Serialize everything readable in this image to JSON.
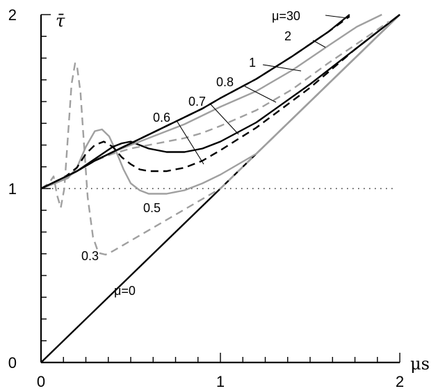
{
  "chart_data": {
    "type": "line",
    "xlabel": "μs",
    "ylabel": "τ̄",
    "xlim": [
      0,
      2
    ],
    "ylim": [
      0,
      2
    ],
    "x_ticks": [
      "0",
      "1",
      "2"
    ],
    "y_ticks": [
      "0",
      "1",
      "2"
    ],
    "reference_line": {
      "y": 1,
      "style": "dotted"
    },
    "series": [
      {
        "name": "μ=0",
        "color": "#000000",
        "dash": "solid",
        "x": [
          0,
          0,
          2
        ],
        "y": [
          0,
          0,
          2
        ]
      },
      {
        "name": "0.3",
        "color": "#a0a0a0",
        "dash": "dashed",
        "x": [
          0,
          0.03,
          0.05,
          0.07,
          0.09,
          0.11,
          0.13,
          0.15,
          0.17,
          0.19,
          0.2,
          0.22,
          0.24,
          0.26,
          0.29,
          0.32,
          0.36,
          0.4,
          0.5,
          0.7,
          1.0,
          1.5,
          1.9
        ],
        "y": [
          1.0,
          1.02,
          1.04,
          1.07,
          0.96,
          0.89,
          1.0,
          1.3,
          1.6,
          1.72,
          1.71,
          1.55,
          1.25,
          0.95,
          0.72,
          0.63,
          0.62,
          0.64,
          0.7,
          0.82,
          1.0,
          1.5,
          1.9
        ]
      },
      {
        "name": "0.5",
        "color": "#a0a0a0",
        "dash": "solid",
        "x": [
          0,
          0.05,
          0.1,
          0.15,
          0.2,
          0.25,
          0.3,
          0.34,
          0.38,
          0.42,
          0.46,
          0.5,
          0.55,
          0.6,
          0.7,
          0.8,
          0.9,
          1.0,
          1.2,
          1.5,
          2.0
        ],
        "y": [
          1.0,
          1.02,
          1.04,
          1.06,
          1.12,
          1.24,
          1.33,
          1.34,
          1.3,
          1.21,
          1.11,
          1.03,
          0.99,
          0.97,
          0.97,
          0.99,
          1.03,
          1.08,
          1.2,
          1.5,
          2.0
        ]
      },
      {
        "name": "0.6",
        "color": "#000000",
        "dash": "dashed",
        "x": [
          0,
          0.1,
          0.2,
          0.25,
          0.3,
          0.35,
          0.4,
          0.45,
          0.5,
          0.55,
          0.6,
          0.7,
          0.8,
          0.9,
          1.0,
          1.2,
          1.5,
          1.75,
          2.0
        ],
        "y": [
          1.0,
          1.04,
          1.12,
          1.2,
          1.25,
          1.27,
          1.24,
          1.18,
          1.14,
          1.11,
          1.1,
          1.1,
          1.12,
          1.16,
          1.22,
          1.35,
          1.58,
          1.8,
          2.0
        ]
      },
      {
        "name": "0.7",
        "color": "#000000",
        "dash": "solid",
        "x": [
          0,
          0.1,
          0.2,
          0.3,
          0.4,
          0.45,
          0.5,
          0.55,
          0.6,
          0.7,
          0.8,
          0.9,
          1.0,
          1.2,
          1.5,
          1.75,
          2.0
        ],
        "y": [
          1.0,
          1.04,
          1.1,
          1.17,
          1.24,
          1.26,
          1.27,
          1.25,
          1.23,
          1.21,
          1.21,
          1.23,
          1.27,
          1.38,
          1.6,
          1.8,
          2.0
        ]
      },
      {
        "name": "0.8",
        "color": "#a0a0a0",
        "dash": "dashed",
        "x": [
          0,
          0.1,
          0.2,
          0.3,
          0.4,
          0.5,
          0.6,
          0.7,
          0.8,
          0.9,
          1.0,
          1.2,
          1.4,
          1.6,
          1.8,
          1.94
        ],
        "y": [
          1.0,
          1.04,
          1.1,
          1.16,
          1.2,
          1.23,
          1.25,
          1.27,
          1.29,
          1.32,
          1.36,
          1.45,
          1.57,
          1.72,
          1.86,
          1.96
        ]
      },
      {
        "name": "1",
        "color": "#a0a0a0",
        "dash": "solid",
        "x": [
          0,
          0.1,
          0.2,
          0.3,
          0.4,
          0.5,
          0.6,
          0.7,
          0.8,
          0.9,
          1.0,
          1.2,
          1.4,
          1.6,
          1.76,
          1.9
        ],
        "y": [
          1.0,
          1.04,
          1.1,
          1.16,
          1.21,
          1.25,
          1.29,
          1.33,
          1.37,
          1.42,
          1.47,
          1.56,
          1.68,
          1.82,
          1.93,
          2.0
        ]
      },
      {
        "name": "2",
        "color": "#000000",
        "dash": "dashed",
        "x": [
          0,
          0.1,
          0.2,
          0.3,
          0.4,
          0.5,
          0.6,
          0.7,
          0.8,
          0.9,
          1.0,
          1.2,
          1.4,
          1.6,
          1.72
        ],
        "y": [
          1.0,
          1.05,
          1.1,
          1.16,
          1.21,
          1.26,
          1.31,
          1.36,
          1.41,
          1.46,
          1.52,
          1.63,
          1.76,
          1.9,
          1.99
        ]
      },
      {
        "name": "μ=30",
        "color": "#000000",
        "dash": "solid",
        "x": [
          0,
          0.1,
          0.2,
          0.3,
          0.4,
          0.5,
          0.6,
          0.7,
          0.8,
          0.9,
          1.0,
          1.2,
          1.4,
          1.6,
          1.72
        ],
        "y": [
          1.0,
          1.05,
          1.1,
          1.16,
          1.21,
          1.26,
          1.31,
          1.36,
          1.41,
          1.46,
          1.52,
          1.63,
          1.76,
          1.9,
          2.0
        ]
      }
    ],
    "annotations": [
      {
        "text": "μ=30",
        "target": "μ=30"
      },
      {
        "text": "2",
        "target": "2"
      },
      {
        "text": "1",
        "target": "1"
      },
      {
        "text": "0.8",
        "target": "0.8"
      },
      {
        "text": "0.7",
        "target": "0.7"
      },
      {
        "text": "0.6",
        "target": "0.6"
      },
      {
        "text": "0.5",
        "target": "0.5"
      },
      {
        "text": "0.3",
        "target": "0.3"
      },
      {
        "text": "μ=0",
        "target": "μ=0"
      }
    ]
  }
}
